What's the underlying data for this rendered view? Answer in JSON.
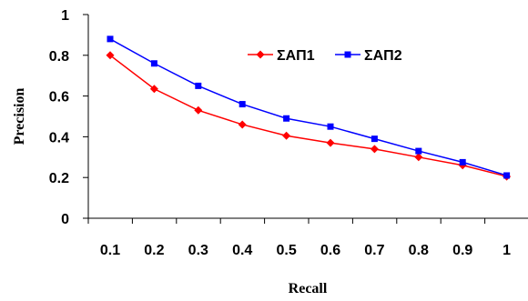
{
  "chart_data": {
    "type": "line",
    "xlabel": "Recall",
    "ylabel": "Precision",
    "x": [
      0.1,
      0.2,
      0.3,
      0.4,
      0.5,
      0.6,
      0.7,
      0.8,
      0.9,
      1
    ],
    "x_tick_labels": [
      "0.1",
      "0.2",
      "0.3",
      "0.4",
      "0.5",
      "0.6",
      "0.7",
      "0.8",
      "0.9",
      "1"
    ],
    "ylim": [
      0,
      1
    ],
    "y_ticks": [
      0,
      0.2,
      0.4,
      0.6,
      0.8,
      1
    ],
    "y_tick_labels": [
      "0",
      "0.2",
      "0.4",
      "0.6",
      "0.8",
      "1"
    ],
    "grid": false,
    "legend_position": "top-right",
    "series": [
      {
        "name": "ΣΑΠ1",
        "color": "#ff0000",
        "marker": "diamond",
        "values": [
          0.8,
          0.635,
          0.53,
          0.46,
          0.405,
          0.37,
          0.34,
          0.3,
          0.26,
          0.205
        ]
      },
      {
        "name": "ΣΑΠ2",
        "color": "#0000ff",
        "marker": "square",
        "values": [
          0.88,
          0.76,
          0.65,
          0.56,
          0.49,
          0.45,
          0.39,
          0.33,
          0.275,
          0.21
        ]
      }
    ]
  }
}
